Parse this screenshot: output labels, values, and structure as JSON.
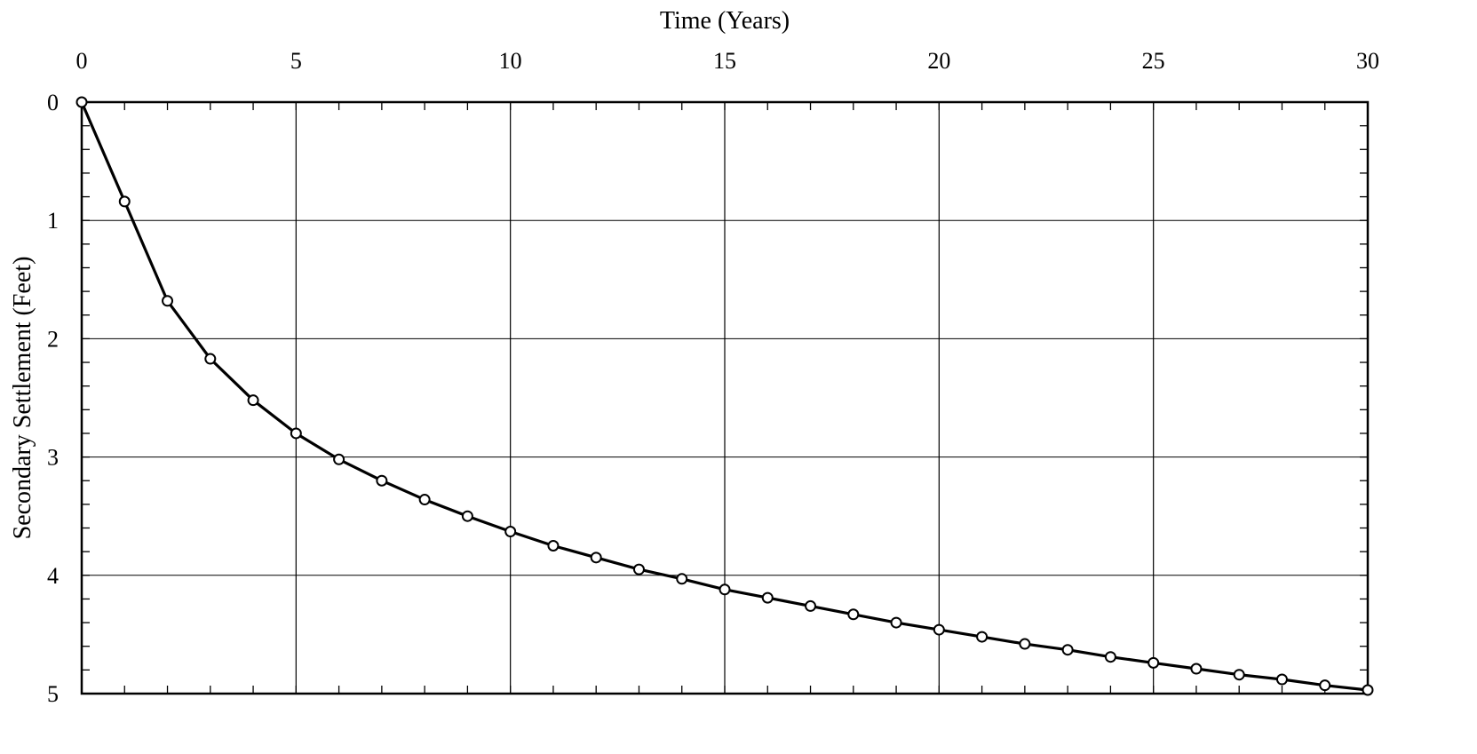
{
  "chart_data": {
    "type": "line",
    "xlabel": "Time (Years)",
    "ylabel": "Secondary Settlement (Feet)",
    "xlim": [
      0,
      30
    ],
    "ylim": [
      0,
      5
    ],
    "y_inverted": true,
    "x_axis_position": "top",
    "grid": true,
    "x_ticks": [
      0,
      5,
      10,
      15,
      20,
      25,
      30
    ],
    "y_ticks": [
      0,
      1,
      2,
      3,
      4,
      5
    ],
    "x_minor_step": 1,
    "y_minor_step": 0.2,
    "series": [
      {
        "marker": "open-circle",
        "color": "#000000",
        "x": [
          0,
          1,
          2,
          3,
          4,
          5,
          6,
          7,
          8,
          9,
          10,
          11,
          12,
          13,
          14,
          15,
          16,
          17,
          18,
          19,
          20,
          21,
          22,
          23,
          24,
          25,
          26,
          27,
          28,
          29,
          30
        ],
        "y": [
          0,
          0.84,
          1.68,
          2.17,
          2.52,
          2.8,
          3.02,
          3.2,
          3.36,
          3.5,
          3.63,
          3.75,
          3.85,
          3.95,
          4.03,
          4.12,
          4.19,
          4.26,
          4.33,
          4.4,
          4.46,
          4.52,
          4.58,
          4.63,
          4.69,
          4.74,
          4.79,
          4.84,
          4.88,
          4.93,
          4.97
        ]
      }
    ]
  }
}
